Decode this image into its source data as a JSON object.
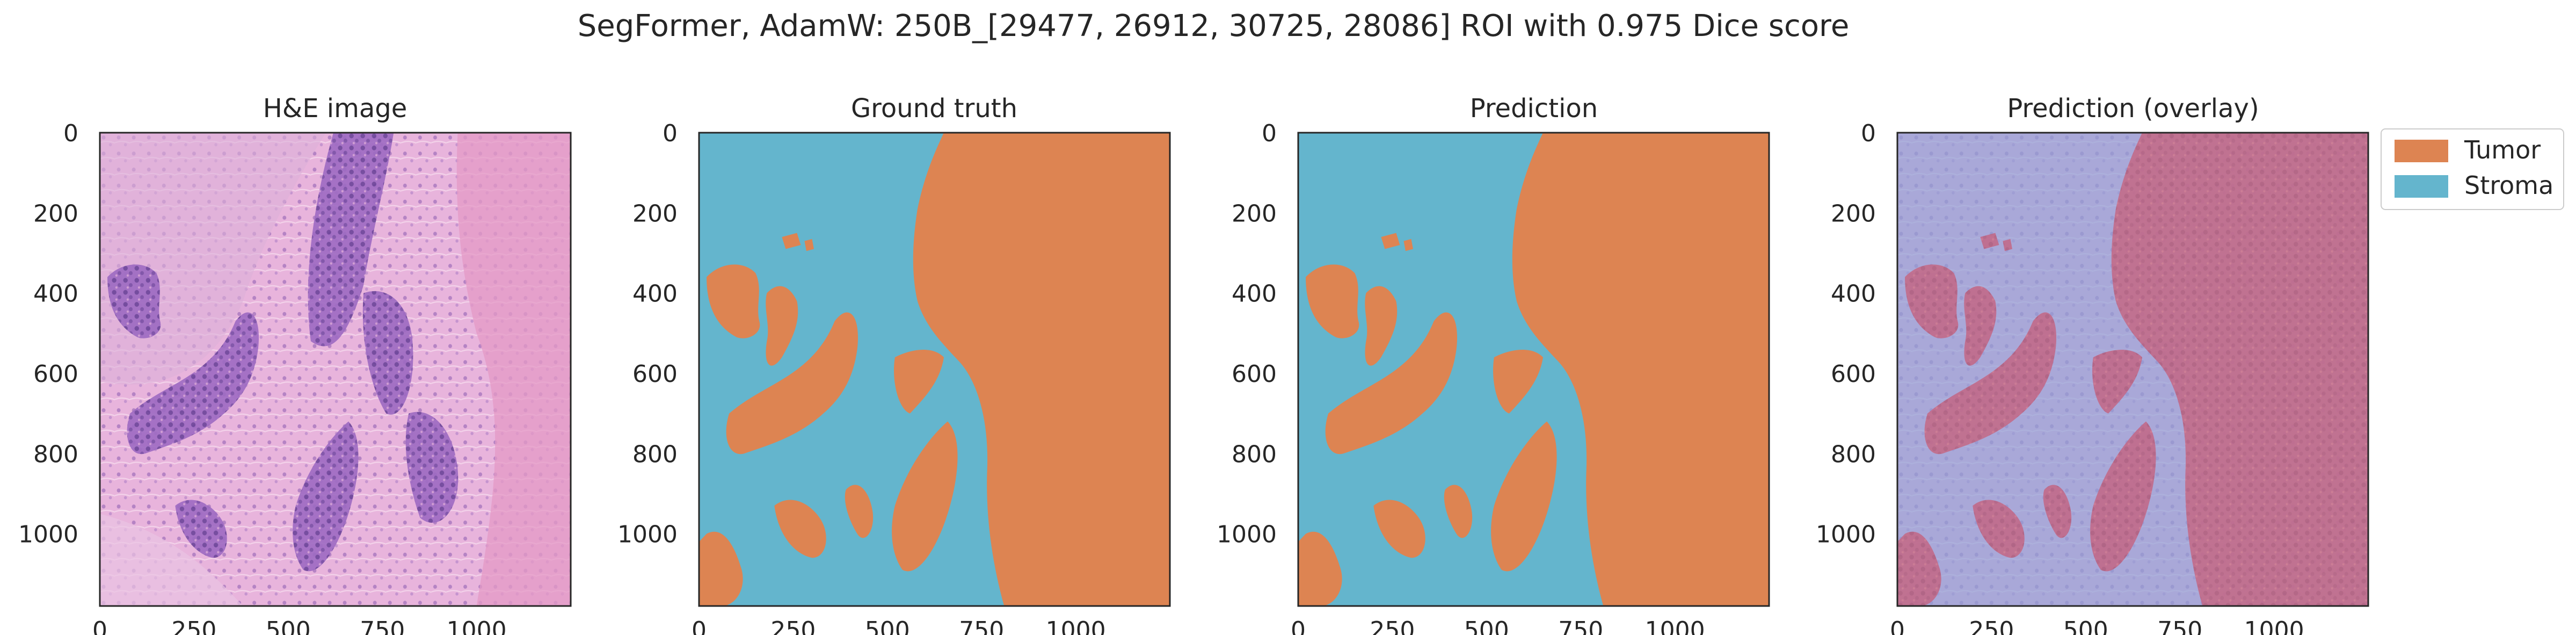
{
  "figure": {
    "suptitle": "SegFormer, AdamW: 250B_[29477, 26912, 30725, 28086] ROI with 0.975 Dice score"
  },
  "colors": {
    "tumor": "#dd8452",
    "stroma": "#64b5cd",
    "he_pink": "#e6a7d4",
    "he_purple": "#7d4ea6",
    "overlay_red": "#d46a6a",
    "overlay_blue": "#a3b1dc"
  },
  "axes": {
    "x_ticks": [
      "0",
      "250",
      "500",
      "750",
      "1000"
    ],
    "y_ticks": [
      "0",
      "200",
      "400",
      "600",
      "800",
      "1000"
    ]
  },
  "panels": [
    {
      "title": "H&E image"
    },
    {
      "title": "Ground truth"
    },
    {
      "title": "Prediction"
    },
    {
      "title": "Prediction (overlay)"
    }
  ],
  "legend": {
    "items": [
      {
        "label": "Tumor"
      },
      {
        "label": "Stroma"
      }
    ]
  }
}
